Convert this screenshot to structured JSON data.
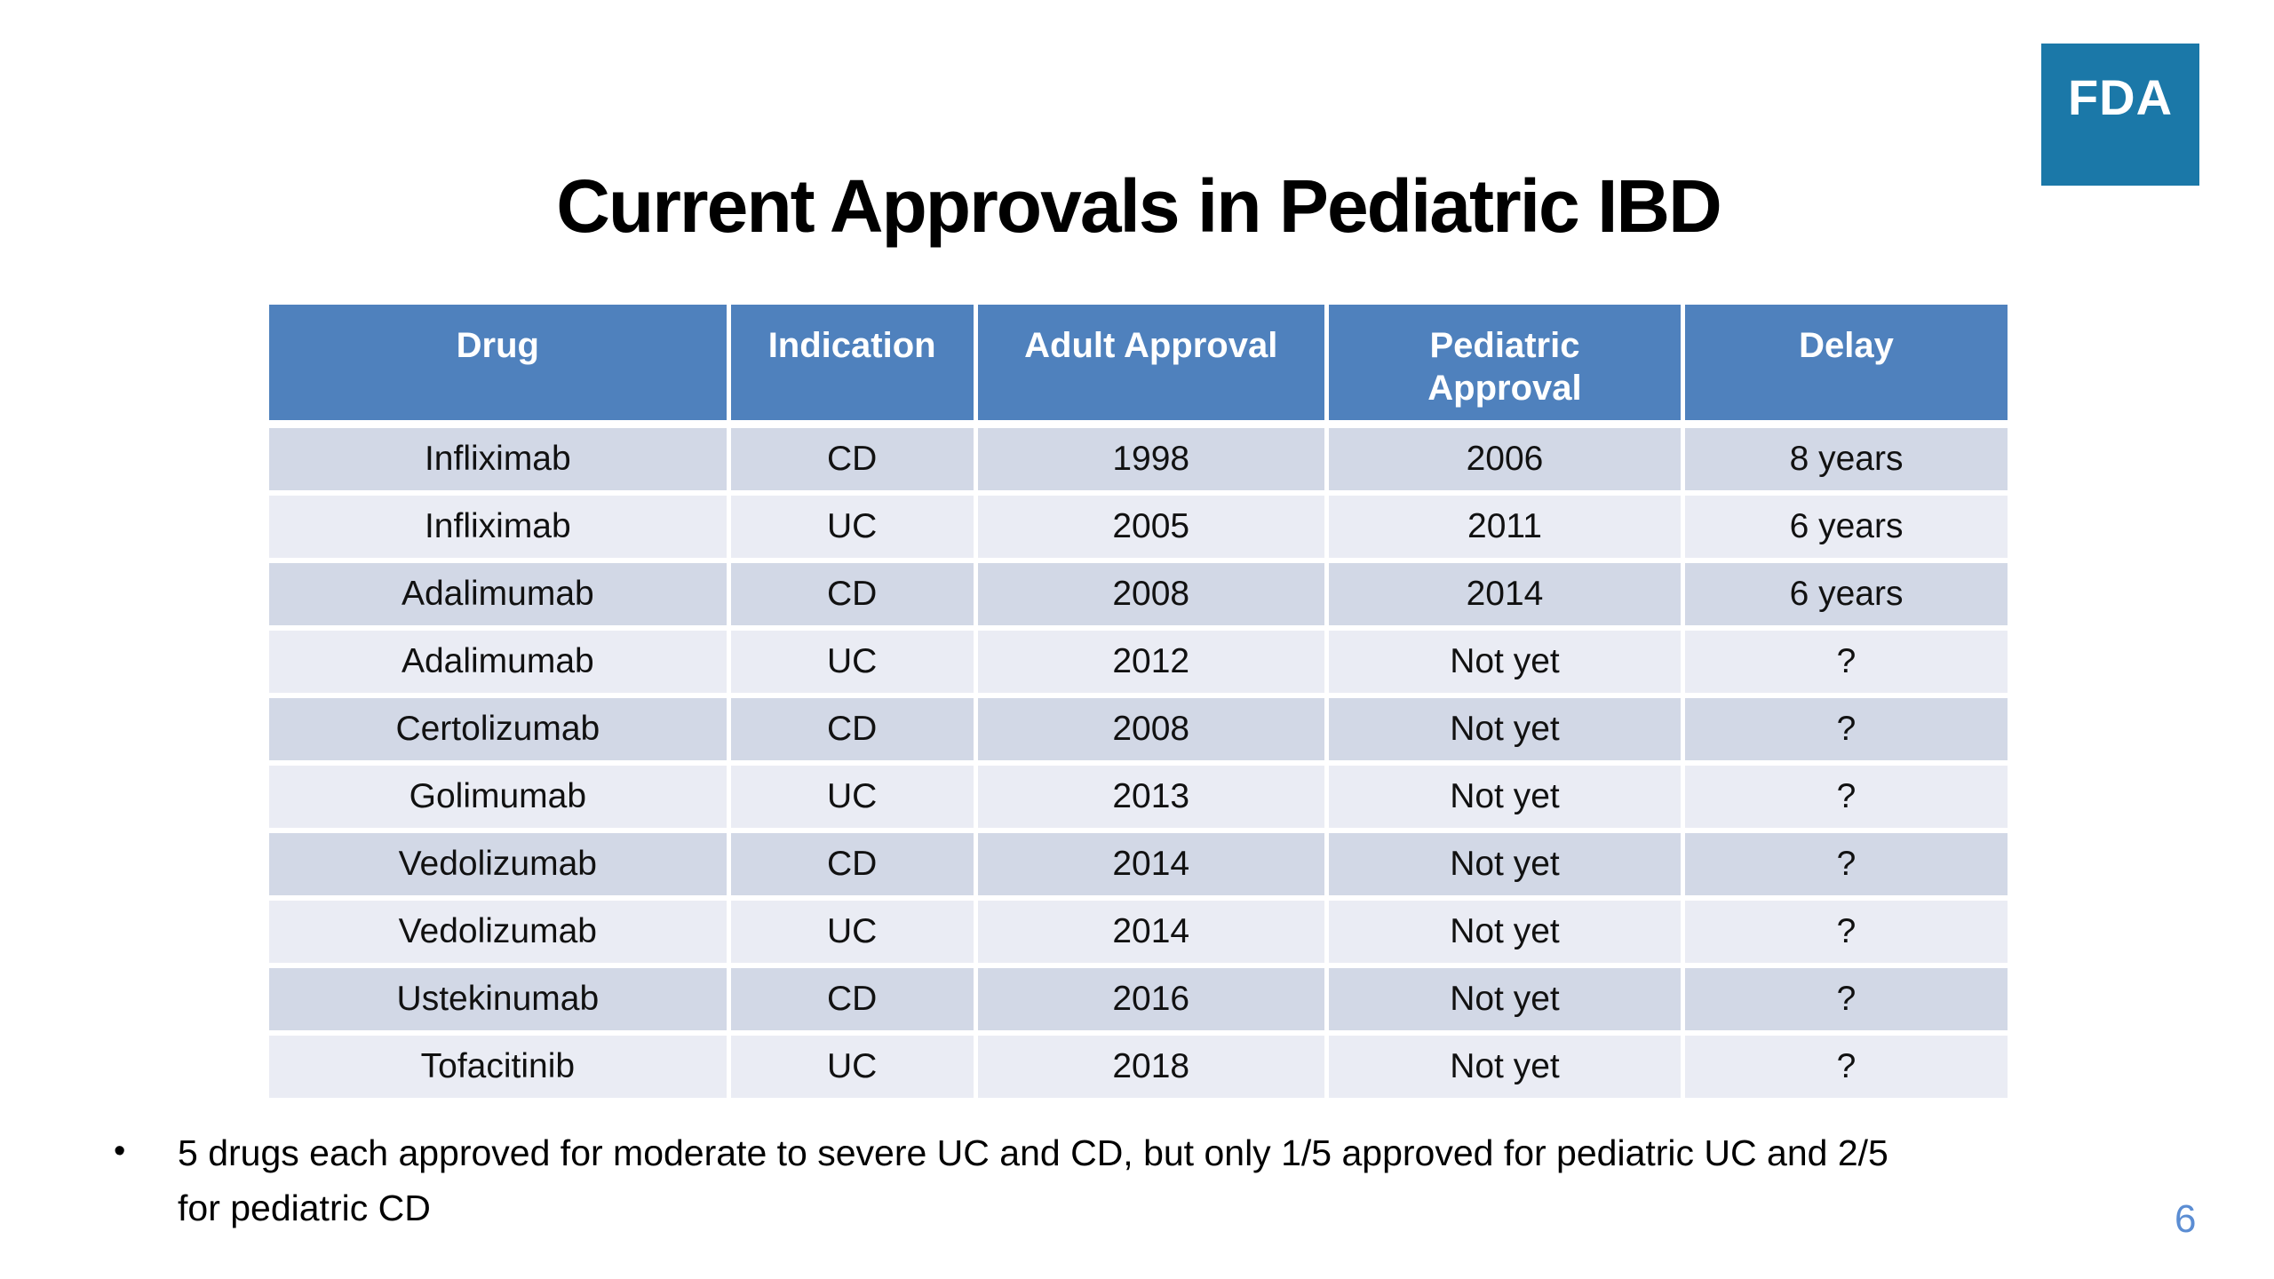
{
  "logo": {
    "text": "FDA",
    "bg_color": "#1b78a8",
    "text_color": "#ffffff"
  },
  "title": "Current Approvals in Pediatric IBD",
  "table": {
    "headers": [
      "Drug",
      "Indication",
      "Adult Approval",
      "Pediatric Approval",
      "Delay"
    ],
    "rows": [
      [
        "Infliximab",
        "CD",
        "1998",
        "2006",
        "8 years"
      ],
      [
        "Infliximab",
        "UC",
        "2005",
        "2011",
        "6 years"
      ],
      [
        "Adalimumab",
        "CD",
        "2008",
        "2014",
        "6 years"
      ],
      [
        "Adalimumab",
        "UC",
        "2012",
        "Not yet",
        "?"
      ],
      [
        "Certolizumab",
        "CD",
        "2008",
        "Not yet",
        "?"
      ],
      [
        "Golimumab",
        "UC",
        "2013",
        "Not yet",
        "?"
      ],
      [
        "Vedolizumab",
        "CD",
        "2014",
        "Not yet",
        "?"
      ],
      [
        "Vedolizumab",
        "UC",
        "2014",
        "Not yet",
        "?"
      ],
      [
        "Ustekinumab",
        "CD",
        "2016",
        "Not yet",
        "?"
      ],
      [
        "Tofacitinib",
        "UC",
        "2018",
        "Not yet",
        "?"
      ]
    ],
    "colors": {
      "header_bg": "#4f81bd",
      "header_text": "#ffffff",
      "band_dark": "#d2d8e6",
      "band_light": "#eaecf4"
    }
  },
  "bullet": {
    "marker": "•",
    "lines": [
      "5 drugs each approved for moderate to severe UC and CD, but only 1/5  approved for pediatric UC and 2/5",
      "for pediatric CD"
    ]
  },
  "page_number": "6"
}
